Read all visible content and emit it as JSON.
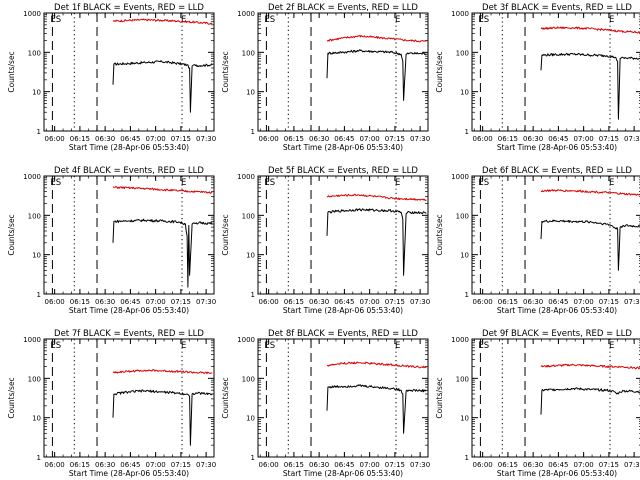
{
  "figure": {
    "x_axis_label": "Start Time (28-Apr-06 05:53:40)",
    "y_axis_label": "Counts/sec",
    "x_tick_labels": [
      "06:00",
      "06:15",
      "06:30",
      "06:45",
      "07:00",
      "07:15",
      "07:30"
    ],
    "y_tick_labels": [
      "1",
      "10",
      "100",
      "1000"
    ],
    "markers": {
      "start": "ES",
      "end": "E"
    },
    "colors": {
      "events": "#000000",
      "lld": "#dd0000"
    }
  },
  "chart_data": [
    {
      "type": "line",
      "title": "Det 1f BLACK = Events, RED = LLD",
      "xlabel": "Start Time (28-Apr-06 05:53:40)",
      "ylabel": "Counts/sec",
      "x_unit": "minutes after 05:53:40",
      "xlim": [
        0,
        101
      ],
      "ylim": [
        1,
        1000
      ],
      "y_scale": "log",
      "vlines": {
        "dashed": [
          5,
          31.5
        ],
        "dotted": [
          18,
          82
        ]
      },
      "series": [
        {
          "name": "Events",
          "color": "#000000",
          "x": [
            41,
            41.5,
            50,
            60,
            70,
            80,
            85,
            86.5,
            87,
            88,
            89,
            90,
            100
          ],
          "y": [
            15,
            50,
            52,
            55,
            58,
            52,
            48,
            40,
            3,
            45,
            48,
            46,
            48
          ]
        },
        {
          "name": "LLD",
          "color": "#dd0000",
          "x": [
            41,
            50,
            60,
            70,
            80,
            90,
            100
          ],
          "y": [
            620,
            650,
            670,
            650,
            620,
            580,
            540
          ]
        }
      ]
    },
    {
      "type": "line",
      "title": "Det 2f BLACK = Events, RED = LLD",
      "xlabel": "Start Time (28-Apr-06 05:53:40)",
      "ylabel": "Counts/sec",
      "x_unit": "minutes after 05:53:40",
      "xlim": [
        0,
        101
      ],
      "ylim": [
        1,
        1000
      ],
      "y_scale": "log",
      "vlines": {
        "dashed": [
          5,
          31.5
        ],
        "dotted": [
          18,
          82
        ]
      },
      "series": [
        {
          "name": "Events",
          "color": "#000000",
          "x": [
            41,
            41.5,
            50,
            60,
            70,
            80,
            85,
            86,
            86.5,
            88,
            90,
            100
          ],
          "y": [
            22,
            95,
            100,
            110,
            105,
            100,
            90,
            60,
            6,
            90,
            95,
            92
          ]
        },
        {
          "name": "LLD",
          "color": "#dd0000",
          "x": [
            41,
            50,
            60,
            70,
            80,
            90,
            100
          ],
          "y": [
            200,
            230,
            260,
            240,
            220,
            200,
            190
          ]
        }
      ]
    },
    {
      "type": "line",
      "title": "Det 3f BLACK = Events, RED = LLD",
      "xlabel": "Start Time (28-Apr-06 05:53:40)",
      "ylabel": "Counts/sec",
      "x_unit": "minutes after 05:53:40",
      "xlim": [
        0,
        101
      ],
      "ylim": [
        1,
        1000
      ],
      "y_scale": "log",
      "vlines": {
        "dashed": [
          5,
          31.5
        ],
        "dotted": [
          18,
          82
        ]
      },
      "series": [
        {
          "name": "Events",
          "color": "#000000",
          "x": [
            41,
            41.5,
            50,
            60,
            70,
            80,
            85,
            86.5,
            87,
            88,
            90,
            100
          ],
          "y": [
            35,
            85,
            88,
            90,
            85,
            82,
            75,
            60,
            2,
            70,
            72,
            70
          ]
        },
        {
          "name": "LLD",
          "color": "#dd0000",
          "x": [
            41,
            50,
            60,
            70,
            80,
            90,
            100
          ],
          "y": [
            400,
            420,
            420,
            400,
            370,
            340,
            320
          ]
        }
      ]
    },
    {
      "type": "line",
      "title": "Det 4f BLACK = Events, RED = LLD",
      "xlabel": "Start Time (28-Apr-06 05:53:40)",
      "ylabel": "Counts/sec",
      "x_unit": "minutes after 05:53:40",
      "xlim": [
        0,
        101
      ],
      "ylim": [
        1,
        1000
      ],
      "y_scale": "log",
      "vlines": {
        "dashed": [
          5,
          31.5
        ],
        "dotted": [
          18,
          82
        ]
      },
      "series": [
        {
          "name": "Events",
          "color": "#000000",
          "x": [
            41,
            41.5,
            50,
            60,
            70,
            80,
            84,
            85,
            85.5,
            86,
            86.5,
            88,
            90,
            91,
            92,
            100
          ],
          "y": [
            20,
            70,
            72,
            75,
            72,
            68,
            60,
            30,
            1.5,
            55,
            3,
            60,
            62,
            60,
            65,
            62
          ]
        },
        {
          "name": "LLD",
          "color": "#dd0000",
          "x": [
            41,
            50,
            60,
            70,
            80,
            90,
            100
          ],
          "y": [
            520,
            500,
            480,
            450,
            420,
            400,
            380
          ]
        }
      ]
    },
    {
      "type": "line",
      "title": "Det 5f BLACK = Events, RED = LLD",
      "xlabel": "Start Time (28-Apr-06 05:53:40)",
      "ylabel": "Counts/sec",
      "x_unit": "minutes after 05:53:40",
      "xlim": [
        0,
        101
      ],
      "ylim": [
        1,
        1000
      ],
      "y_scale": "log",
      "vlines": {
        "dashed": [
          5,
          31.5
        ],
        "dotted": [
          18,
          82
        ]
      },
      "series": [
        {
          "name": "Events",
          "color": "#000000",
          "x": [
            41,
            41.5,
            50,
            60,
            70,
            80,
            85,
            86,
            86.5,
            88,
            90,
            100
          ],
          "y": [
            30,
            120,
            130,
            140,
            135,
            130,
            120,
            80,
            3,
            110,
            120,
            115
          ]
        },
        {
          "name": "LLD",
          "color": "#dd0000",
          "x": [
            41,
            50,
            60,
            70,
            80,
            90,
            100
          ],
          "y": [
            300,
            320,
            330,
            300,
            270,
            260,
            250
          ]
        }
      ]
    },
    {
      "type": "line",
      "title": "Det 6f BLACK = Events, RED = LLD",
      "xlabel": "Start Time (28-Apr-06 05:53:40)",
      "ylabel": "Counts/sec",
      "x_unit": "minutes after 05:53:40",
      "xlim": [
        0,
        101
      ],
      "ylim": [
        1,
        1000
      ],
      "y_scale": "log",
      "vlines": {
        "dashed": [
          5,
          31.5
        ],
        "dotted": [
          18,
          82
        ]
      },
      "series": [
        {
          "name": "Events",
          "color": "#000000",
          "x": [
            41,
            41.5,
            50,
            60,
            70,
            80,
            83,
            84,
            86.5,
            87,
            88,
            90,
            100
          ],
          "y": [
            25,
            70,
            72,
            70,
            68,
            60,
            55,
            50,
            45,
            4,
            50,
            55,
            52
          ]
        },
        {
          "name": "LLD",
          "color": "#dd0000",
          "x": [
            41,
            50,
            60,
            70,
            80,
            90,
            100
          ],
          "y": [
            420,
            430,
            420,
            400,
            380,
            350,
            330
          ]
        }
      ]
    },
    {
      "type": "line",
      "title": "Det 7f BLACK = Events, RED = LLD",
      "xlabel": "Start Time (28-Apr-06 05:53:40)",
      "ylabel": "Counts/sec",
      "x_unit": "minutes after 05:53:40",
      "xlim": [
        0,
        101
      ],
      "ylim": [
        1,
        1000
      ],
      "y_scale": "log",
      "vlines": {
        "dashed": [
          5,
          31.5
        ],
        "dotted": [
          18,
          82
        ]
      },
      "series": [
        {
          "name": "Events",
          "color": "#000000",
          "x": [
            41,
            41.5,
            50,
            60,
            70,
            80,
            85,
            86.5,
            87,
            88,
            90,
            100
          ],
          "y": [
            10,
            40,
            45,
            48,
            45,
            42,
            40,
            35,
            2,
            40,
            42,
            40
          ]
        },
        {
          "name": "LLD",
          "color": "#dd0000",
          "x": [
            41,
            50,
            60,
            70,
            80,
            90,
            100
          ],
          "y": [
            140,
            150,
            160,
            155,
            150,
            140,
            135
          ]
        }
      ]
    },
    {
      "type": "line",
      "title": "Det 8f BLACK = Events, RED = LLD",
      "xlabel": "Start Time (28-Apr-06 05:53:40)",
      "ylabel": "Counts/sec",
      "x_unit": "minutes after 05:53:40",
      "xlim": [
        0,
        101
      ],
      "ylim": [
        1,
        1000
      ],
      "y_scale": "log",
      "vlines": {
        "dashed": [
          5,
          31.5
        ],
        "dotted": [
          18,
          82
        ]
      },
      "series": [
        {
          "name": "Events",
          "color": "#000000",
          "x": [
            41,
            41.5,
            50,
            60,
            70,
            80,
            85,
            86,
            86.5,
            88,
            90,
            100
          ],
          "y": [
            15,
            60,
            62,
            65,
            60,
            55,
            50,
            40,
            4,
            48,
            50,
            48
          ]
        },
        {
          "name": "LLD",
          "color": "#dd0000",
          "x": [
            41,
            50,
            60,
            70,
            80,
            90,
            100
          ],
          "y": [
            210,
            240,
            250,
            235,
            220,
            200,
            190
          ]
        }
      ]
    },
    {
      "type": "line",
      "title": "Det 9f BLACK = Events, RED = LLD",
      "xlabel": "Start Time (28-Apr-06 05:53:40)",
      "ylabel": "Counts/sec",
      "x_unit": "minutes after 05:53:40",
      "xlim": [
        0,
        101
      ],
      "ylim": [
        1,
        1000
      ],
      "y_scale": "log",
      "vlines": {
        "dashed": [
          5,
          31.5
        ],
        "dotted": [
          18,
          82
        ]
      },
      "series": [
        {
          "name": "Events",
          "color": "#000000",
          "x": [
            41,
            41.5,
            50,
            60,
            70,
            80,
            85,
            86,
            88,
            90,
            100
          ],
          "y": [
            12,
            50,
            52,
            55,
            52,
            50,
            45,
            40,
            45,
            48,
            46
          ]
        },
        {
          "name": "LLD",
          "color": "#dd0000",
          "x": [
            41,
            50,
            60,
            70,
            80,
            90,
            100
          ],
          "y": [
            200,
            210,
            220,
            210,
            200,
            195,
            180
          ]
        }
      ]
    }
  ]
}
